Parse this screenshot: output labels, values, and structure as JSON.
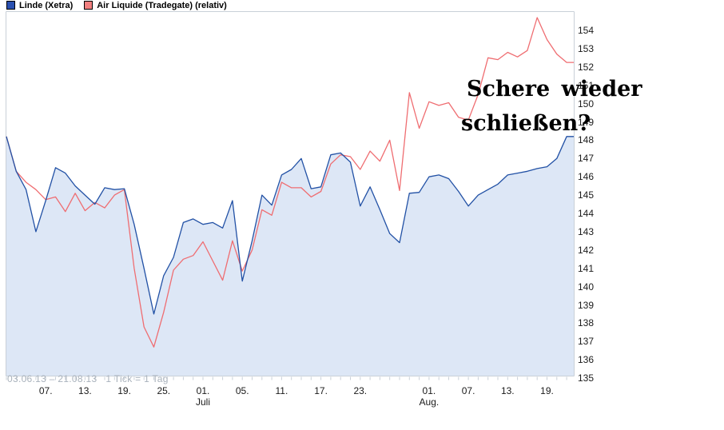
{
  "legend": {
    "items": [
      {
        "label": "Linde (Xetra)",
        "swatch_color": "#2a50b0"
      },
      {
        "label": "Air Liquide (Tradegate) (relativ)",
        "swatch_color": "#f28080"
      }
    ]
  },
  "annotation": {
    "line1": "Schere wieder",
    "line2": "schließen?"
  },
  "footer_note": "03.06.13 – 21.08.13   1 Tick = 1 Tag",
  "colors": {
    "axis": "#c9d0d8",
    "tick_label": "#1a1a1a",
    "footer_text": "#a9b2bc",
    "blue_line": "#2251a5",
    "blue_fill": "#dde7f6",
    "red_line": "#ef6d71"
  },
  "chart_data": {
    "type": "line",
    "title": "",
    "xlabel": "",
    "ylabel": "",
    "grid": "none",
    "legend_position": "top-left",
    "ylim": [
      135.1,
      155.0
    ],
    "y_ticks": [
      154,
      153,
      152,
      151,
      150,
      149,
      148,
      147,
      146,
      145,
      144,
      143,
      142,
      141,
      140,
      139,
      138,
      137,
      136,
      135
    ],
    "x_dates": [
      "03.06",
      "04.06",
      "05.06",
      "06.06",
      "07.06",
      "10.06",
      "11.06",
      "12.06",
      "13.06",
      "14.06",
      "17.06",
      "18.06",
      "19.06",
      "20.06",
      "21.06",
      "24.06",
      "25.06",
      "26.06",
      "27.06",
      "28.06",
      "01.07",
      "02.07",
      "03.07",
      "04.07",
      "05.07",
      "08.07",
      "09.07",
      "10.07",
      "11.07",
      "12.07",
      "15.07",
      "16.07",
      "17.07",
      "18.07",
      "19.07",
      "22.07",
      "23.07",
      "24.07",
      "25.07",
      "26.07",
      "29.07",
      "30.07",
      "31.07",
      "01.08",
      "02.08",
      "05.08",
      "06.08",
      "07.08",
      "08.08",
      "09.08",
      "12.08",
      "13.08",
      "14.08",
      "15.08",
      "16.08",
      "19.08",
      "20.08",
      "21.08"
    ],
    "x_ticks": [
      {
        "index": 4,
        "label": "07."
      },
      {
        "index": 8,
        "label": "13."
      },
      {
        "index": 12,
        "label": "19."
      },
      {
        "index": 16,
        "label": "25."
      },
      {
        "index": 20,
        "label": "01."
      },
      {
        "index": 24,
        "label": "05."
      },
      {
        "index": 28,
        "label": "11."
      },
      {
        "index": 32,
        "label": "17."
      },
      {
        "index": 36,
        "label": "23."
      },
      {
        "index": 43,
        "label": "01."
      },
      {
        "index": 47,
        "label": "07."
      },
      {
        "index": 51,
        "label": "13."
      },
      {
        "index": 55,
        "label": "19."
      }
    ],
    "month_labels": [
      {
        "index": 20,
        "label": "Juli"
      },
      {
        "index": 43,
        "label": "Aug."
      }
    ],
    "series": [
      {
        "name": "Linde (Xetra)",
        "color": "#2251a5",
        "fill": "#dde7f6",
        "values": [
          148.2,
          146.3,
          145.3,
          143.0,
          144.7,
          146.5,
          146.2,
          145.5,
          145.0,
          144.5,
          145.4,
          145.3,
          145.35,
          143.4,
          141.0,
          138.5,
          140.6,
          141.6,
          143.5,
          143.7,
          143.4,
          143.5,
          143.2,
          144.7,
          140.3,
          142.5,
          145.0,
          144.45,
          146.1,
          146.4,
          147.0,
          145.35,
          145.45,
          147.2,
          147.3,
          146.8,
          144.4,
          145.45,
          144.2,
          142.9,
          142.4,
          145.1,
          145.15,
          146.0,
          146.1,
          145.9,
          145.2,
          144.4,
          145.0,
          145.3,
          145.6,
          146.1,
          146.2,
          146.3,
          146.45,
          146.55,
          147.0,
          148.2
        ]
      },
      {
        "name": "Air Liquide (Tradegate) (relativ)",
        "color": "#ef6d71",
        "values": [
          148.2,
          146.3,
          145.7,
          145.3,
          144.75,
          144.9,
          144.1,
          145.1,
          144.15,
          144.6,
          144.3,
          145.0,
          145.3,
          141.0,
          137.8,
          136.7,
          138.6,
          140.9,
          141.5,
          141.7,
          142.45,
          141.4,
          140.35,
          142.5,
          140.85,
          142.0,
          144.2,
          143.9,
          145.7,
          145.4,
          145.4,
          144.9,
          145.2,
          146.7,
          147.2,
          147.1,
          146.4,
          147.4,
          146.85,
          148.0,
          145.25,
          150.6,
          148.65,
          150.1,
          149.9,
          150.05,
          149.25,
          149.1,
          150.5,
          152.5,
          152.4,
          152.8,
          152.55,
          152.9,
          154.7,
          153.5,
          152.7,
          152.25
        ]
      }
    ]
  }
}
